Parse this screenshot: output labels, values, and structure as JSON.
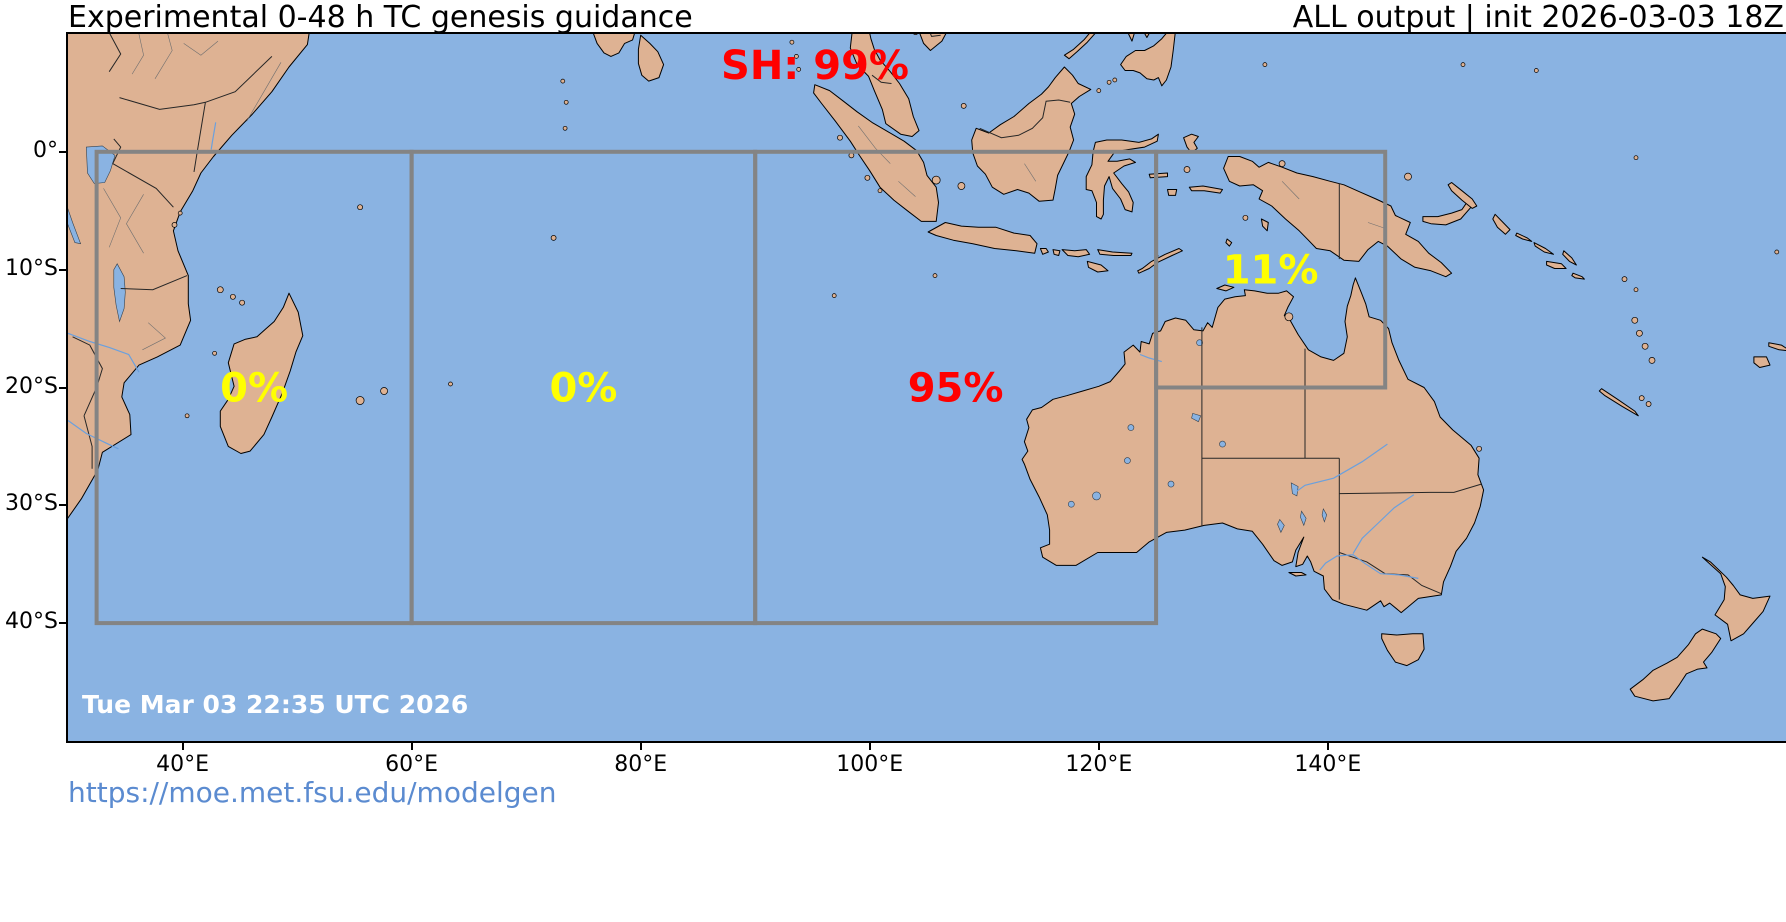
{
  "header": {
    "title": "Experimental 0-48 h TC genesis guidance",
    "init_info": "ALL output | init 2026-03-03 18Z"
  },
  "map": {
    "basin_label": "SH: 99%",
    "basin_label_lon": 95.2,
    "timestamp": "Tue Mar 03 22:35 UTC 2026",
    "lon_range": [
      30,
      180
    ],
    "lat_range": [
      -50,
      10
    ],
    "regions": [
      {
        "name": "southwest-indian",
        "label": "0%",
        "label_color": "#ffff00",
        "lon_min": 32.5,
        "lon_max": 60,
        "lat_min": -40,
        "lat_max": 0
      },
      {
        "name": "central-indian",
        "label": "0%",
        "label_color": "#ffff00",
        "lon_min": 60,
        "lon_max": 90,
        "lat_min": -40,
        "lat_max": 0
      },
      {
        "name": "southeast-indian",
        "label": "95%",
        "label_color": "#ff0000",
        "lon_min": 90,
        "lon_max": 125,
        "lat_min": -40,
        "lat_max": 0
      },
      {
        "name": "arafura-coral-sea",
        "label": "11%",
        "label_color": "#ffff00",
        "lon_min": 125,
        "lon_max": 145,
        "lat_min": -20,
        "lat_max": 0
      }
    ],
    "x_ticks": [
      {
        "lon": 40,
        "label": "40°E"
      },
      {
        "lon": 60,
        "label": "60°E"
      },
      {
        "lon": 80,
        "label": "80°E"
      },
      {
        "lon": 100,
        "label": "100°E"
      },
      {
        "lon": 120,
        "label": "120°E"
      },
      {
        "lon": 140,
        "label": "140°E"
      }
    ],
    "y_ticks": [
      {
        "lat": 0,
        "label": "0°"
      },
      {
        "lat": -10,
        "label": "10°S"
      },
      {
        "lat": -20,
        "label": "20°S"
      },
      {
        "lat": -30,
        "label": "30°S"
      },
      {
        "lat": -40,
        "label": "40°S"
      }
    ]
  },
  "colors": {
    "ocean": "#8ab3e2",
    "land": "#deb293",
    "coastline": "#000000",
    "region_box": "#848484",
    "basin_label": "#ff0000",
    "timestamp": "#ffffff",
    "url_link": "#5b8bd0"
  },
  "footer": {
    "url": "https://moe.met.fsu.edu/modelgen"
  }
}
